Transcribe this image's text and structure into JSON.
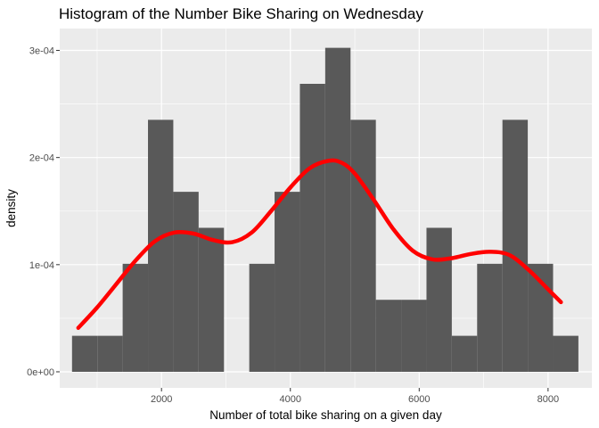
{
  "chart_data": {
    "type": "bar",
    "title": "Histogram of the Number Bike Sharing on Wednesday",
    "xlabel": "Number of total bike sharing on a given day",
    "ylabel": "density",
    "xlim": [
      420,
      8680
    ],
    "ylim": [
      -1.5e-05,
      0.0003204
    ],
    "x_ticks": [
      2000,
      4000,
      6000,
      8000
    ],
    "x_tick_labels": [
      "2000",
      "4000",
      "6000",
      "8000"
    ],
    "x_minor_ticks": [
      1000,
      3000,
      5000,
      7000
    ],
    "y_ticks": [
      0,
      0.0001,
      0.0002,
      0.0003
    ],
    "y_tick_labels": [
      "0e+00",
      "1e-04",
      "2e-04",
      "3e-04"
    ],
    "y_minor_ticks": [
      5e-05,
      0.00015,
      0.00025
    ],
    "grid": true,
    "series": [
      {
        "kind": "histogram",
        "color": "#595959",
        "bins": [
          {
            "x0": 611,
            "x1": 1004,
            "value": 3.36e-05
          },
          {
            "x0": 1004,
            "x1": 1397,
            "value": 3.36e-05
          },
          {
            "x0": 1397,
            "x1": 1790,
            "value": 0.0001008
          },
          {
            "x0": 1790,
            "x1": 2183,
            "value": 0.0002352
          },
          {
            "x0": 2183,
            "x1": 2576,
            "value": 0.000168
          },
          {
            "x0": 2576,
            "x1": 2969,
            "value": 0.0001344
          },
          {
            "x0": 2969,
            "x1": 3362,
            "value": 0
          },
          {
            "x0": 3362,
            "x1": 3755,
            "value": 0.0001008
          },
          {
            "x0": 3755,
            "x1": 4148,
            "value": 0.000168
          },
          {
            "x0": 4148,
            "x1": 4541,
            "value": 0.0002688
          },
          {
            "x0": 4541,
            "x1": 4934,
            "value": 0.0003024
          },
          {
            "x0": 4934,
            "x1": 5327,
            "value": 0.0002352
          },
          {
            "x0": 5327,
            "x1": 5720,
            "value": 6.72e-05
          },
          {
            "x0": 5720,
            "x1": 6113,
            "value": 6.72e-05
          },
          {
            "x0": 6113,
            "x1": 6506,
            "value": 0.0001344
          },
          {
            "x0": 6506,
            "x1": 6899,
            "value": 3.36e-05
          },
          {
            "x0": 6899,
            "x1": 7292,
            "value": 0.0001008
          },
          {
            "x0": 7292,
            "x1": 7685,
            "value": 0.0002352
          },
          {
            "x0": 7685,
            "x1": 8078,
            "value": 0.0001008
          },
          {
            "x0": 8078,
            "x1": 8471,
            "value": 3.36e-05
          }
        ]
      },
      {
        "kind": "density",
        "color": "#ff0000",
        "x": [
          708,
          1000,
          1300,
          1600,
          1900,
          2200,
          2500,
          2800,
          3100,
          3400,
          3700,
          4000,
          4300,
          4600,
          4800,
          5000,
          5300,
          5600,
          5900,
          6200,
          6500,
          6800,
          7100,
          7400,
          7700,
          8000,
          8200
        ],
        "y": [
          4.1e-05,
          6e-05,
          8.2e-05,
          0.000104,
          0.000122,
          0.00013,
          0.000129,
          0.000123,
          0.000121,
          0.00013,
          0.00015,
          0.000172,
          0.00019,
          0.000197,
          0.000195,
          0.000185,
          0.00016,
          0.000133,
          0.000113,
          0.000105,
          0.000106,
          0.00011,
          0.000112,
          0.000109,
          9.5e-05,
          7.7e-05,
          6.5e-05
        ]
      }
    ]
  }
}
